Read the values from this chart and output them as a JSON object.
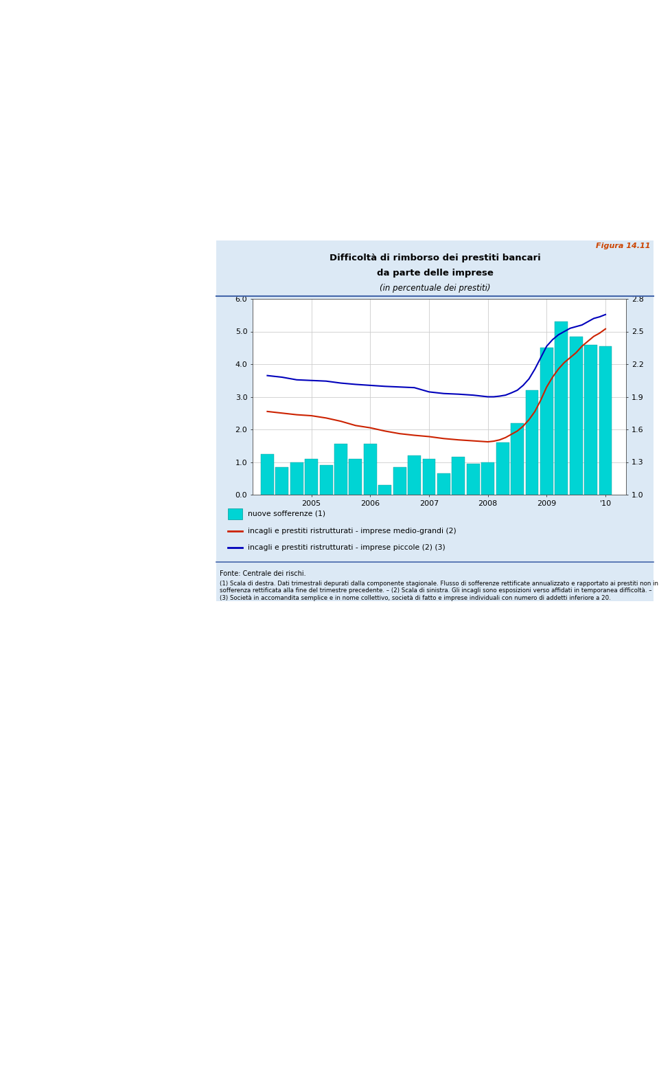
{
  "title_line1": "Difficoltà di rimborso dei prestiti bancari",
  "title_line2": "da parte delle imprese",
  "subtitle": "(in percentuale dei prestiti)",
  "figure_label": "Figura 14.11",
  "page_bg_color": "#f0f0f0",
  "chart_bg_color": "#dce9f5",
  "plot_bg_color": "#ffffff",
  "ylim_left": [
    0.0,
    6.0
  ],
  "ylim_right": [
    1.0,
    2.8
  ],
  "yticks_left": [
    0.0,
    1.0,
    2.0,
    3.0,
    4.0,
    5.0,
    6.0
  ],
  "yticks_right": [
    1.0,
    1.3,
    1.6,
    1.9,
    2.2,
    2.5,
    2.8
  ],
  "xtick_labels": [
    "2005",
    "2006",
    "2007",
    "2008",
    "2009",
    "'10"
  ],
  "bar_color": "#00d4d4",
  "bar_edge_color": "#009999",
  "line_red_color": "#cc2200",
  "line_blue_color": "#0000bb",
  "sep_line_color": "#4466aa",
  "figura_color": "#cc4400",
  "legend_labels": [
    "nuove sofferenze (1)",
    "incagli e prestiti ristrutturati - imprese medio-grandi (2)",
    "incagli e prestiti ristrutturati - imprese piccole (2) (3)"
  ],
  "bar_data_x": [
    2004.25,
    2004.5,
    2004.75,
    2005.0,
    2005.25,
    2005.5,
    2005.75,
    2006.0,
    2006.25,
    2006.5,
    2006.75,
    2007.0,
    2007.25,
    2007.5,
    2007.75,
    2008.0,
    2008.25,
    2008.5,
    2008.75,
    2009.0,
    2009.25,
    2009.5,
    2009.75,
    2010.0
  ],
  "bar_data_y": [
    1.25,
    0.85,
    1.0,
    1.1,
    0.9,
    1.55,
    1.1,
    1.55,
    0.3,
    0.85,
    1.2,
    1.1,
    0.65,
    1.15,
    0.95,
    1.0,
    1.6,
    2.2,
    3.2,
    4.5,
    5.3,
    4.85,
    4.6,
    4.55
  ],
  "line_red_x": [
    2004.25,
    2004.5,
    2004.75,
    2005.0,
    2005.25,
    2005.5,
    2005.75,
    2006.0,
    2006.25,
    2006.5,
    2006.75,
    2007.0,
    2007.25,
    2007.5,
    2007.75,
    2008.0,
    2008.1,
    2008.2,
    2008.3,
    2008.4,
    2008.5,
    2008.6,
    2008.7,
    2008.8,
    2008.9,
    2009.0,
    2009.1,
    2009.2,
    2009.3,
    2009.4,
    2009.5,
    2009.6,
    2009.7,
    2009.8,
    2009.9,
    2010.0
  ],
  "line_red_y": [
    2.55,
    2.5,
    2.45,
    2.42,
    2.35,
    2.25,
    2.12,
    2.05,
    1.95,
    1.87,
    1.82,
    1.78,
    1.72,
    1.68,
    1.65,
    1.62,
    1.64,
    1.68,
    1.75,
    1.85,
    1.95,
    2.1,
    2.3,
    2.55,
    2.9,
    3.3,
    3.6,
    3.85,
    4.05,
    4.2,
    4.35,
    4.55,
    4.7,
    4.85,
    4.95,
    5.08
  ],
  "line_blue_x": [
    2004.25,
    2004.5,
    2004.75,
    2005.0,
    2005.25,
    2005.5,
    2005.75,
    2006.0,
    2006.25,
    2006.5,
    2006.75,
    2007.0,
    2007.25,
    2007.5,
    2007.75,
    2008.0,
    2008.1,
    2008.2,
    2008.3,
    2008.4,
    2008.5,
    2008.6,
    2008.7,
    2008.8,
    2008.9,
    2009.0,
    2009.1,
    2009.2,
    2009.3,
    2009.4,
    2009.5,
    2009.6,
    2009.7,
    2009.8,
    2009.9,
    2010.0
  ],
  "line_blue_y": [
    3.65,
    3.6,
    3.52,
    3.5,
    3.48,
    3.42,
    3.38,
    3.35,
    3.32,
    3.3,
    3.28,
    3.15,
    3.1,
    3.08,
    3.05,
    3.0,
    3.0,
    3.02,
    3.05,
    3.12,
    3.2,
    3.35,
    3.55,
    3.85,
    4.2,
    4.55,
    4.75,
    4.9,
    5.0,
    5.1,
    5.15,
    5.2,
    5.3,
    5.4,
    5.45,
    5.52
  ],
  "fonte_text": "Fonte: Centrale dei rischi.",
  "note_text": "(1) Scala di destra. Dati trimestrali depurati dalla componente stagionale. Flusso di sofferenze rettificate annualizzato e rapportato ai prestiti non in sofferenza rettificata alla fine del trimestre precedente. – (2) Scala di sinistra. Gli incagli sono esposizioni verso affidati in temporanea difficoltà. – (3) Società in accomandita semplice e in nome collettivo, società di fatto e imprese individuali con numero di addetti inferiore a 20."
}
